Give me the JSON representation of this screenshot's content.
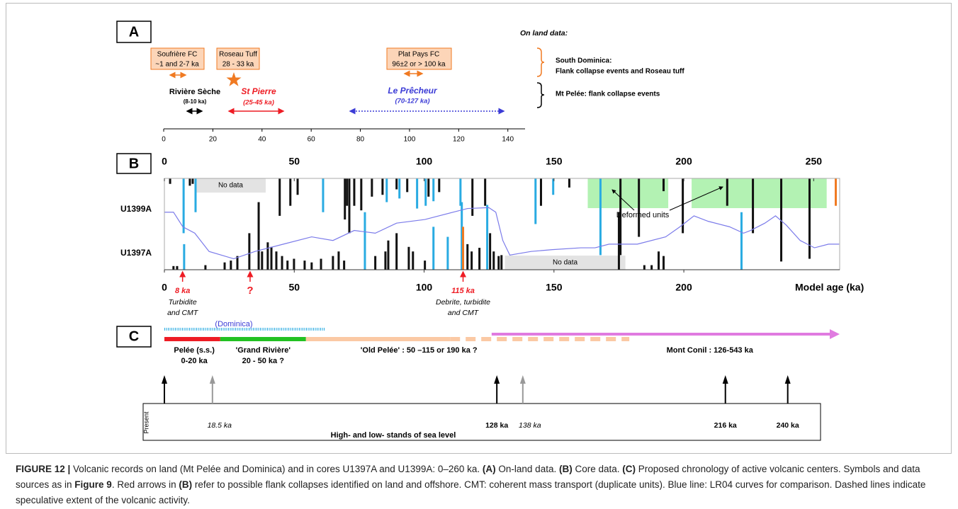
{
  "panel_a": {
    "label": "A",
    "heading": "On land data:",
    "xlim": [
      0,
      147
    ],
    "xticks": [
      0,
      20,
      40,
      60,
      80,
      100,
      120,
      140
    ],
    "boxes": [
      {
        "line1": "Soufrière FC",
        "line2": "~1 and 2-7 ka"
      },
      {
        "line1": "Roseau Tuff",
        "line2": "28 - 33 ka"
      },
      {
        "line1": "Plat Pays FC",
        "line2": "96±2 or > 100 ka"
      }
    ],
    "riviere": {
      "name": "Rivière Sèche",
      "range": "(8-10 ka)"
    },
    "st_pierre": {
      "name": "St Pierre",
      "range": "(25-45 ka)"
    },
    "precheur": {
      "name": "Le Prêcheur",
      "range": "(70-127 ka)"
    },
    "dominica_title": "South Dominica:",
    "dominica_text": "Flank collapse events and Roseau tuff",
    "pelee_text": "Mt Pelée: flank collapse events"
  },
  "panel_b": {
    "label": "B",
    "xlim": [
      0,
      260
    ],
    "xticks": [
      0,
      50,
      100,
      150,
      200,
      250
    ],
    "bottom_xticks": [
      0,
      50,
      100,
      150,
      200
    ],
    "xlabel": "Model age (ka)",
    "no_data": [
      {
        "label": "No data",
        "range": [
          12,
          39
        ]
      },
      {
        "label": "No data",
        "range": [
          131.1,
          177.5
        ]
      }
    ],
    "deformed": {
      "label": "Deformed units",
      "ranges": [
        [
          163,
          194
        ],
        [
          203,
          255
        ]
      ]
    },
    "u1399a": {
      "label": "U1399A",
      "groups": [
        {
          "color": "#111111",
          "bars": [
            [
              2.2,
              6
            ],
            [
              9.8,
              8
            ],
            [
              10.9,
              6
            ],
            [
              44.4,
              41
            ],
            [
              48.5,
              30
            ],
            [
              51.3,
              18
            ],
            [
              69.5,
              45
            ],
            [
              70.3,
              30
            ],
            [
              71.2,
              60
            ],
            [
              73.1,
              30
            ],
            [
              75.8,
              35
            ],
            [
              79.9,
              20
            ],
            [
              84.0,
              18
            ],
            [
              89.4,
              12
            ],
            [
              93.5,
              15
            ],
            [
              101.7,
              20
            ],
            [
              105.8,
              15
            ],
            [
              118.6,
              41
            ],
            [
              123.5,
              30
            ],
            [
              145.0,
              30
            ],
            [
              155.9,
              10
            ],
            [
              175.6,
              84
            ],
            [
              182.7,
              64
            ],
            [
              192.2,
              14
            ],
            [
              199.6,
              60
            ],
            [
              216.7,
              30
            ],
            [
              226.6,
              60
            ],
            [
              237.5,
              91
            ],
            [
              248.4,
              88
            ]
          ]
        },
        {
          "color": "#29abe2",
          "bars": [
            [
              7.4,
              60
            ],
            [
              12.0,
              37
            ],
            [
              61.1,
              37
            ],
            [
              85.6,
              26
            ],
            [
              90.5,
              22
            ],
            [
              97.3,
              33
            ],
            [
              100.6,
              30
            ],
            [
              103.6,
              25
            ],
            [
              114.0,
              30
            ],
            [
              142.9,
              50
            ],
            [
              149.7,
              18
            ],
            [
              167.9,
              84
            ]
          ]
        },
        {
          "color": "#f07a22",
          "bars": [
            [
              258.5,
              30
            ]
          ]
        }
      ]
    },
    "u1397a": {
      "label": "U1397A",
      "groups": [
        {
          "color": "#111111",
          "bars": [
            [
              3.5,
              4
            ],
            [
              4.9,
              4
            ],
            [
              15.8,
              5
            ],
            [
              23.2,
              8
            ],
            [
              25.6,
              10
            ],
            [
              28.1,
              15
            ],
            [
              32.7,
              40
            ],
            [
              36.3,
              74
            ],
            [
              37.6,
              20
            ],
            [
              39.8,
              30
            ],
            [
              41.2,
              25
            ],
            [
              43.1,
              20
            ],
            [
              45.3,
              15
            ],
            [
              47.4,
              10
            ],
            [
              49.9,
              12
            ],
            [
              54.0,
              10
            ],
            [
              56.7,
              8
            ],
            [
              60.3,
              12
            ],
            [
              64.9,
              15
            ],
            [
              67.1,
              20
            ],
            [
              69.2,
              10
            ],
            [
              81.2,
              15
            ],
            [
              85.1,
              20
            ],
            [
              86.2,
              32
            ],
            [
              89.4,
              40
            ],
            [
              94.1,
              25
            ],
            [
              95.7,
              20
            ],
            [
              100.3,
              10
            ],
            [
              116.7,
              28
            ],
            [
              118.3,
              20
            ],
            [
              121.3,
              24
            ],
            [
              125.4,
              40
            ],
            [
              126.8,
              20
            ],
            [
              128.7,
              15
            ],
            [
              129.8,
              16
            ],
            [
              175.0,
              63
            ],
            [
              184.8,
              5
            ],
            [
              187.6,
              5
            ],
            [
              190.3,
              20
            ],
            [
              192.2,
              15
            ]
          ]
        },
        {
          "color": "#29abe2",
          "bars": [
            [
              7.6,
              28
            ],
            [
              77.2,
              63
            ],
            [
              103.6,
              47
            ],
            [
              109.1,
              36
            ],
            [
              114.5,
              74
            ],
            [
              124.3,
              71
            ],
            [
              222.2,
              63
            ]
          ]
        },
        {
          "color": "#f07a22",
          "bars": [
            [
              115.0,
              47
            ]
          ]
        }
      ]
    },
    "lr04": {
      "color": "#7b7bea",
      "ages": [
        0,
        3.5,
        7.1,
        11.7,
        17.2,
        26.7,
        34.9,
        45.8,
        56.7,
        64.9,
        73.1,
        81.2,
        89.4,
        100.3,
        111.2,
        116.7,
        124.9,
        127.6,
        130.3,
        133.0,
        141.2,
        149.4,
        160.3,
        165.8,
        171.2,
        182.1,
        193.0,
        198.5,
        203.9,
        209.4,
        217.6,
        223.0,
        225.7,
        231.2,
        235.3,
        239.4,
        244.8,
        250.3,
        255.7,
        259.8
      ],
      "values": [
        37,
        37,
        53,
        60,
        80,
        88,
        80,
        72,
        64,
        68,
        57,
        60,
        49,
        45,
        37,
        33,
        32,
        37,
        68,
        84,
        80,
        78,
        76,
        76,
        72,
        72,
        64,
        53,
        41,
        47,
        53,
        60,
        57,
        49,
        41,
        51,
        68,
        76,
        72,
        72
      ]
    },
    "events": [
      {
        "age": 7,
        "label": "8 ka",
        "notes": [
          "Turbidite",
          "and CMT"
        ]
      },
      {
        "age": 33,
        "label": "?",
        "notes": []
      },
      {
        "age": 115,
        "label": "115 ka",
        "notes": [
          "Debrite, turbidite",
          "and CMT"
        ]
      }
    ]
  },
  "panel_c": {
    "label": "C",
    "dominica": {
      "label": "(Dominica)",
      "range": [
        0,
        62
      ]
    },
    "centers": [
      {
        "color": "#ee1c24",
        "range": [
          0,
          21.5
        ],
        "dashed": false
      },
      {
        "color": "#22c122",
        "range": [
          21.5,
          54.5
        ],
        "dashed": false
      },
      {
        "color": "#fbc9a4",
        "range": [
          54.5,
          110
        ],
        "dashed": false
      },
      {
        "color": "#fbc9a4",
        "range": [
          110,
          179
        ],
        "dashed": true
      }
    ],
    "conil_arrow": {
      "color": "#e07be0",
      "range": [
        126,
        260
      ]
    },
    "texts": [
      {
        "line1": "Pelée (s.s.)",
        "line2": "0-20 ka",
        "age": 11.5
      },
      {
        "line1": "'Grand Rivière'",
        "line2": "20 - 50 ka ?",
        "age": 38
      },
      {
        "line1": "'Old Pelée' : 50 –115 or 190 ka ?",
        "line2": "",
        "age": 98
      },
      {
        "line1": "Mont Conil : 126-543 ka",
        "line2": "",
        "age": 210
      }
    ],
    "sea_levels": [
      {
        "age": 0,
        "label": "Present",
        "color": "#000000",
        "italic": false
      },
      {
        "age": 18.5,
        "label": "18.5 ka",
        "color": "#999999",
        "italic": true
      },
      {
        "age": 128,
        "label": "128 ka",
        "color": "#000000",
        "italic": false
      },
      {
        "age": 138,
        "label": "138 ka",
        "color": "#999999",
        "italic": true
      },
      {
        "age": 216,
        "label": "216 ka",
        "color": "#000000",
        "italic": false
      },
      {
        "age": 240,
        "label": "240 ka",
        "color": "#000000",
        "italic": false
      }
    ],
    "sea_caption": "High- and low- stands of sea level"
  },
  "caption": [
    {
      "text": "FIGURE 12 | ",
      "bold": true
    },
    {
      "text": "Volcanic records on land (Mt Pelée and Dominica) and in cores U1397A and U1399A: 0–260 ka. ",
      "bold": false
    },
    {
      "text": "(A)",
      "bold": true
    },
    {
      "text": " On-land data. ",
      "bold": false
    },
    {
      "text": "(B)",
      "bold": true
    },
    {
      "text": " Core data. ",
      "bold": false
    },
    {
      "text": "(C)",
      "bold": true
    },
    {
      "text": " Proposed chronology of active volcanic centers. Symbols and data sources as in ",
      "bold": false
    },
    {
      "text": "Figure 9",
      "bold": true
    },
    {
      "text": ". Red arrows in ",
      "bold": false
    },
    {
      "text": "(B)",
      "bold": true
    },
    {
      "text": " refer to possible flank collapses identified on land and offshore. CMT: coherent mass transport (duplicate units). Blue line: LR04 curves for comparison. Dashed lines indicate speculative extent of the volcanic activity.",
      "bold": false
    }
  ]
}
